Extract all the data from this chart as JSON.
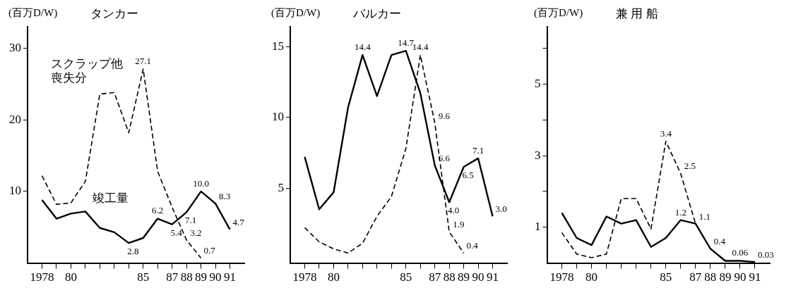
{
  "chart_data": [
    {
      "type": "line",
      "title": "タンカー",
      "ylabel": "(百万D/W)",
      "x": [
        1978,
        1979,
        1980,
        1981,
        1982,
        1983,
        1984,
        1985,
        1986,
        1987,
        1988,
        1989,
        1990,
        1991
      ],
      "xlim": [
        1977,
        1992
      ],
      "xticks": [
        {
          "value": 1978,
          "label": "1978"
        },
        {
          "value": 1979,
          "label": null
        },
        {
          "value": 1980,
          "label": "80"
        },
        {
          "value": 1981,
          "label": null
        },
        {
          "value": 1982,
          "label": null
        },
        {
          "value": 1983,
          "label": null
        },
        {
          "value": 1984,
          "label": null
        },
        {
          "value": 1985,
          "label": "85"
        },
        {
          "value": 1986,
          "label": null
        },
        {
          "value": 1987,
          "label": "87"
        },
        {
          "value": 1988,
          "label": "88"
        },
        {
          "value": 1989,
          "label": "89"
        },
        {
          "value": 1990,
          "label": "90"
        },
        {
          "value": 1991,
          "label": "91"
        }
      ],
      "ylim": [
        0,
        33
      ],
      "yticks": [
        10,
        20,
        30
      ],
      "grid": false,
      "legend": false,
      "marker": "none",
      "series": [
        {
          "name": "竣工量",
          "color": "#000000",
          "line_style": "solid",
          "values": [
            8.8,
            6.2,
            6.9,
            7.2,
            4.9,
            4.3,
            2.8,
            3.5,
            6.2,
            5.4,
            7.1,
            10.0,
            8.3,
            4.7
          ],
          "value_labels": [
            null,
            null,
            null,
            null,
            null,
            null,
            "2.8",
            null,
            "6.2",
            "5.4",
            "7.1",
            "10.0",
            "8.3",
            "4.7"
          ]
        },
        {
          "name": "スクラップ他喪失分",
          "color": "#000000",
          "line_style": "dashed",
          "values": [
            12.2,
            8.2,
            8.4,
            11.4,
            23.6,
            23.8,
            18.2,
            27.1,
            12.8,
            7.8,
            3.2,
            0.7,
            null,
            null
          ],
          "value_labels": [
            null,
            null,
            null,
            null,
            null,
            null,
            null,
            "27.1",
            null,
            null,
            "3.2",
            "0.7",
            null,
            null
          ]
        }
      ]
    },
    {
      "type": "line",
      "title": "バルカー",
      "ylabel": "(百万D/W)",
      "x": [
        1978,
        1979,
        1980,
        1981,
        1982,
        1983,
        1984,
        1985,
        1986,
        1987,
        1988,
        1989,
        1990,
        1991
      ],
      "xlim": [
        1977,
        1992
      ],
      "xticks": [
        {
          "value": 1978,
          "label": "1978"
        },
        {
          "value": 1979,
          "label": null
        },
        {
          "value": 1980,
          "label": "80"
        },
        {
          "value": 1981,
          "label": null
        },
        {
          "value": 1982,
          "label": null
        },
        {
          "value": 1983,
          "label": null
        },
        {
          "value": 1984,
          "label": null
        },
        {
          "value": 1985,
          "label": "85"
        },
        {
          "value": 1986,
          "label": null
        },
        {
          "value": 1987,
          "label": "87"
        },
        {
          "value": 1988,
          "label": "88"
        },
        {
          "value": 1989,
          "label": "89"
        },
        {
          "value": 1990,
          "label": "90"
        },
        {
          "value": 1991,
          "label": "91"
        }
      ],
      "ylim": [
        -0.3,
        16.4
      ],
      "yticks": [
        5,
        10,
        15
      ],
      "grid": false,
      "legend": false,
      "marker": "none",
      "series": [
        {
          "color": "#000000",
          "line_style": "solid",
          "values": [
            7.2,
            3.5,
            4.7,
            10.7,
            14.4,
            11.5,
            14.4,
            14.7,
            11.7,
            6.6,
            4.0,
            6.5,
            7.1,
            3.0
          ],
          "value_labels": [
            null,
            null,
            null,
            null,
            "14.4",
            null,
            null,
            "14.7",
            null,
            "6.6",
            "4.0",
            "6.5",
            "7.1",
            "3.0"
          ]
        },
        {
          "color": "#000000",
          "line_style": "dashed",
          "values": [
            2.2,
            1.2,
            0.7,
            0.4,
            1.1,
            3.0,
            4.4,
            7.8,
            14.4,
            9.6,
            1.9,
            0.4,
            null,
            null
          ],
          "value_labels": [
            null,
            null,
            null,
            null,
            null,
            null,
            null,
            null,
            "14.4",
            "9.6",
            "1.9",
            "0.4",
            null,
            null
          ]
        }
      ]
    },
    {
      "type": "line",
      "title": "兼 用 船",
      "ylabel": "(百万D/W)",
      "x": [
        1978,
        1979,
        1980,
        1981,
        1982,
        1983,
        1984,
        1985,
        1986,
        1987,
        1988,
        1989,
        1990,
        1991
      ],
      "xlim": [
        1977,
        1992
      ],
      "xticks": [
        {
          "value": 1978,
          "label": "1978"
        },
        {
          "value": 1979,
          "label": null
        },
        {
          "value": 1980,
          "label": "80"
        },
        {
          "value": 1981,
          "label": null
        },
        {
          "value": 1982,
          "label": null
        },
        {
          "value": 1983,
          "label": null
        },
        {
          "value": 1984,
          "label": null
        },
        {
          "value": 1985,
          "label": "85"
        },
        {
          "value": 1986,
          "label": null
        },
        {
          "value": 1987,
          "label": "87"
        },
        {
          "value": 1988,
          "label": "88"
        },
        {
          "value": 1989,
          "label": "89"
        },
        {
          "value": 1990,
          "label": "90"
        },
        {
          "value": 1991,
          "label": "91"
        }
      ],
      "ylim": [
        0,
        6.6
      ],
      "yticks": [
        1,
        {
          "value": 2,
          "label": null
        },
        3,
        {
          "value": 4,
          "label": null
        },
        5,
        {
          "value": 6,
          "label": null
        }
      ],
      "grid": false,
      "legend": false,
      "marker": "none",
      "series": [
        {
          "color": "#000000",
          "line_style": "solid",
          "values": [
            1.4,
            0.7,
            0.5,
            1.3,
            1.1,
            1.2,
            0.45,
            0.7,
            1.2,
            1.1,
            0.4,
            0.06,
            0.06,
            0.03
          ],
          "value_labels": [
            null,
            null,
            null,
            null,
            null,
            null,
            null,
            null,
            "1.2",
            "1.1",
            "0.4",
            null,
            "0.06",
            "0.03"
          ]
        },
        {
          "color": "#000000",
          "line_style": "dashed",
          "values": [
            0.85,
            0.25,
            0.15,
            0.25,
            1.8,
            1.8,
            0.95,
            3.4,
            2.5,
            1.1,
            null,
            null,
            null,
            null
          ],
          "value_labels": [
            null,
            null,
            null,
            null,
            null,
            null,
            null,
            "3.4",
            "2.5",
            null,
            null,
            null,
            null,
            null
          ]
        }
      ]
    }
  ]
}
